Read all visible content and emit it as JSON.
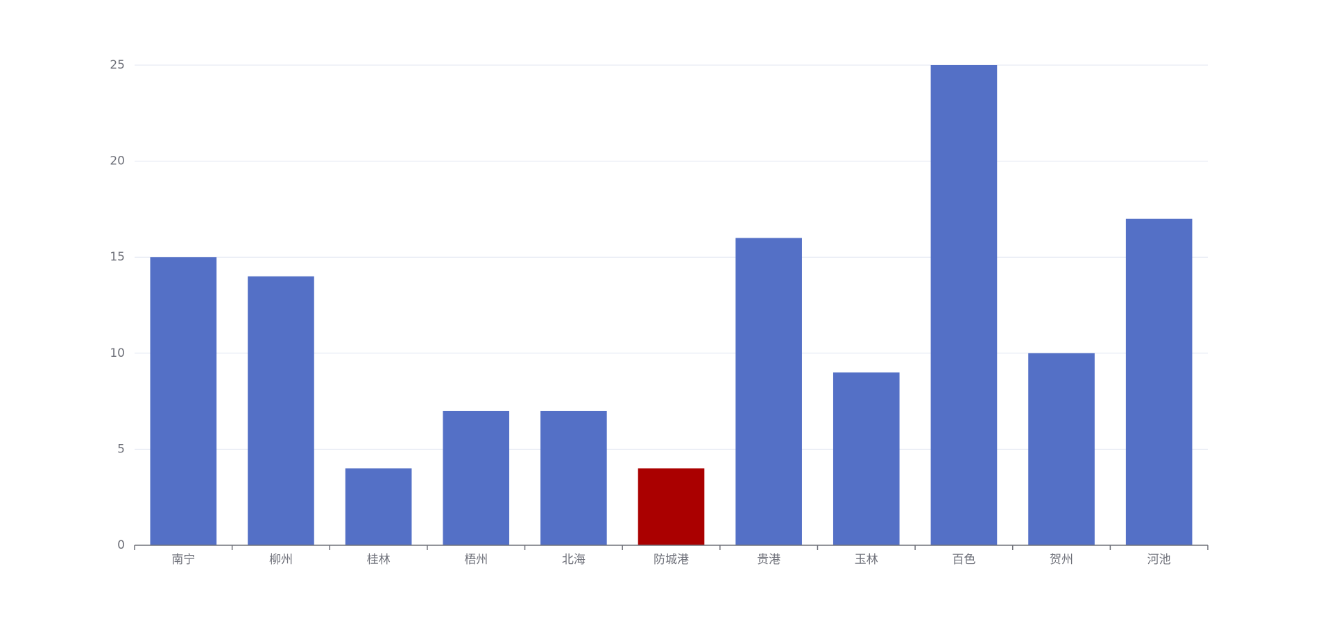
{
  "chart_data": {
    "type": "bar",
    "categories": [
      "南宁",
      "柳州",
      "桂林",
      "梧州",
      "北海",
      "防城港",
      "贵港",
      "玉林",
      "百色",
      "贺州",
      "河池"
    ],
    "values": [
      15,
      14,
      4,
      7,
      7,
      4,
      16,
      9,
      25,
      10,
      17
    ],
    "colors": [
      "#5470c6",
      "#5470c6",
      "#5470c6",
      "#5470c6",
      "#5470c6",
      "#aa0000",
      "#5470c6",
      "#5470c6",
      "#5470c6",
      "#5470c6",
      "#5470c6"
    ],
    "ylim": [
      0,
      25
    ],
    "yticks": [
      0,
      5,
      10,
      15,
      20,
      25
    ],
    "grid": true
  }
}
